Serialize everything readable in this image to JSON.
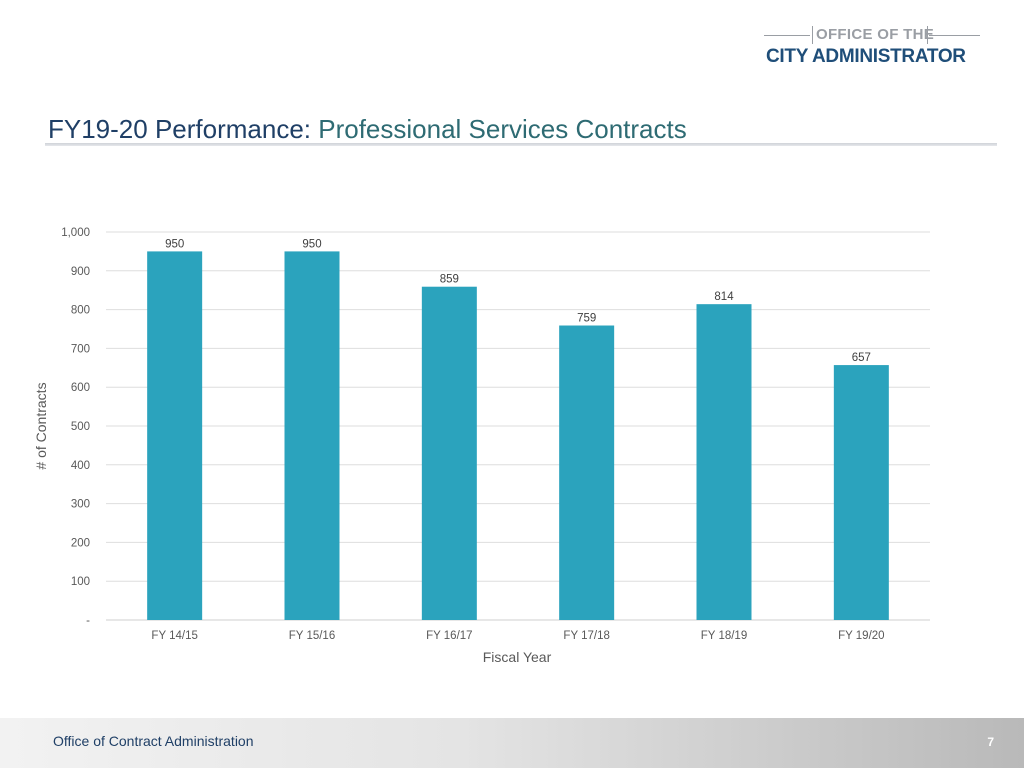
{
  "logo": {
    "line1": "OFFICE OF THE",
    "line2": "CITY ADMINISTRATOR"
  },
  "slide": {
    "title_bold": "FY19-20 Performance:",
    "title_sub": "Professional Services Contracts"
  },
  "colors": {
    "bar": "#2ba3bd",
    "title": "#1f3f66",
    "subtitle": "#2e6b73"
  },
  "chart_data": {
    "type": "bar",
    "categories": [
      "FY 14/15",
      "FY 15/16",
      "FY 16/17",
      "FY 17/18",
      "FY 18/19",
      "FY 19/20"
    ],
    "values": [
      950,
      950,
      859,
      759,
      814,
      657
    ],
    "data_labels": [
      "950",
      "950",
      "859",
      "759",
      "814",
      "657"
    ],
    "ylim": [
      0,
      1000
    ],
    "yticks": [
      0,
      100,
      200,
      300,
      400,
      500,
      600,
      700,
      800,
      900,
      1000
    ],
    "ytick_labels": [
      "-",
      "100",
      "200",
      "300",
      "400",
      "500",
      "600",
      "700",
      "800",
      "900",
      "1,000"
    ],
    "xlabel": "Fiscal Year",
    "ylabel": "# of Contracts",
    "grid": true,
    "legend": "none"
  },
  "footer": {
    "text": "Office of Contract Administration",
    "page_number": "7"
  }
}
